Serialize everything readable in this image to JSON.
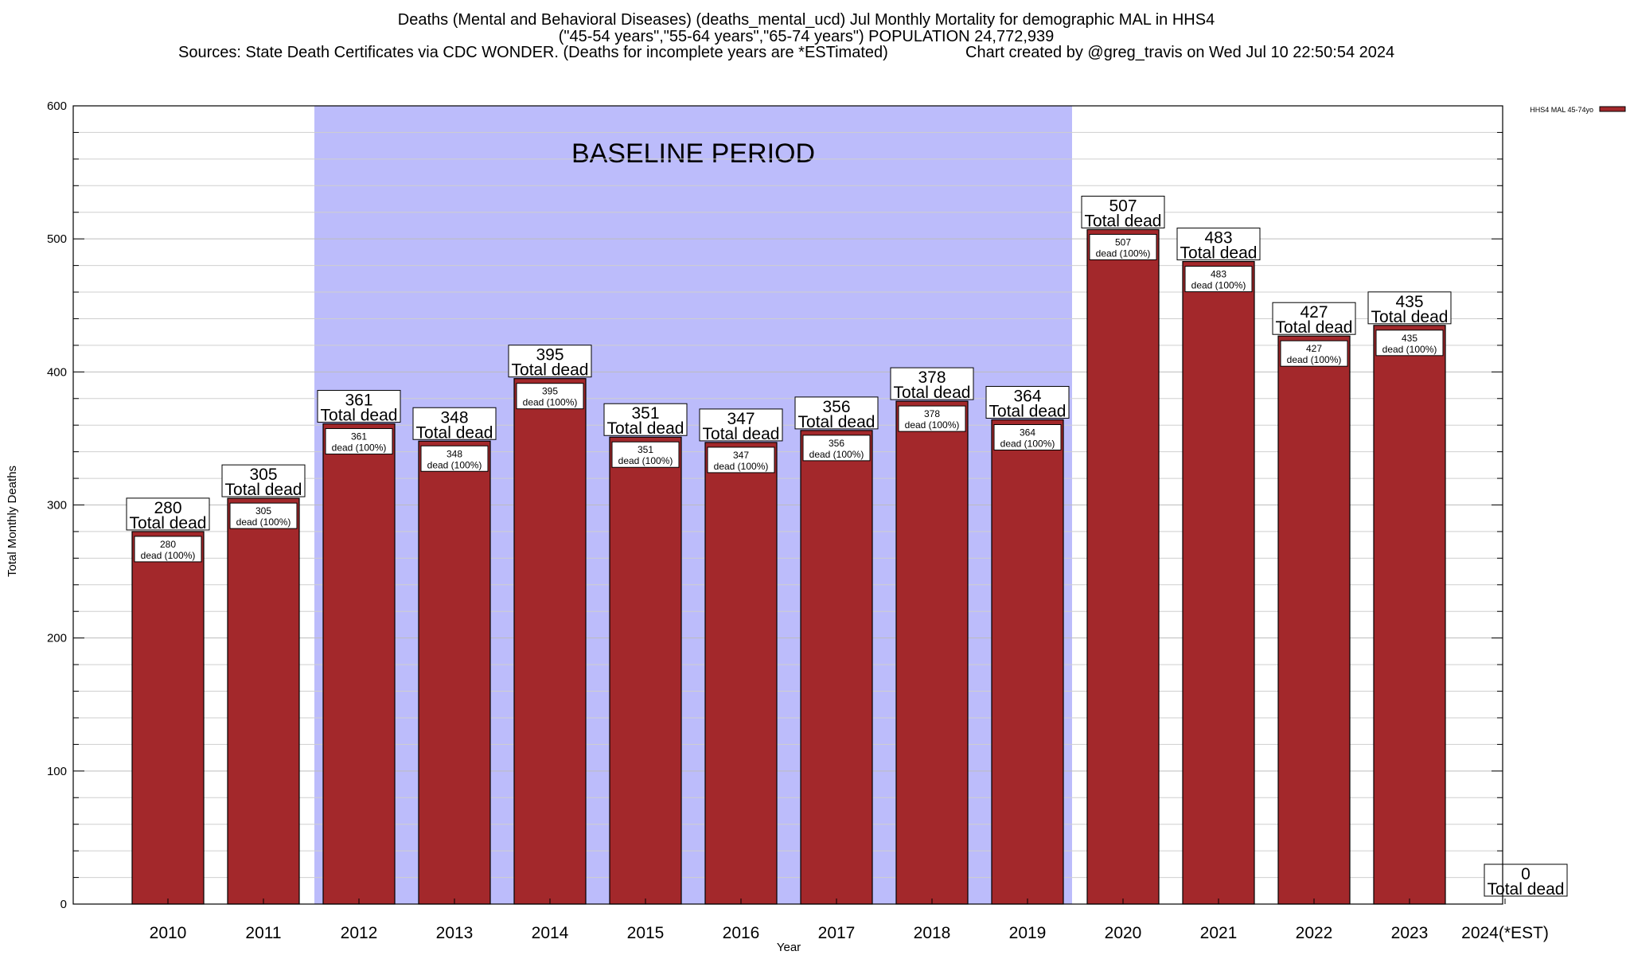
{
  "chart_data": {
    "type": "bar",
    "title_lines": [
      "Deaths (Mental and Behavioral Diseases) (deaths_mental_ucd) Jul Monthly Mortality for demographic MAL in HHS4",
      "(\"45-54 years\",\"55-64 years\",\"65-74 years\") POPULATION 24,772,939",
      "Sources: State Death Certificates via CDC WONDER. (Deaths for incomplete years are *ESTimated)",
      "Chart created by @greg_travis on Wed Jul 10 22:50:54 2024"
    ],
    "xlabel": "Year",
    "ylabel": "Total Monthly Deaths",
    "ylim": [
      0,
      600
    ],
    "yticks": [
      0,
      100,
      200,
      300,
      400,
      500,
      600
    ],
    "grid": true,
    "legend": {
      "position": "top-right",
      "entries": [
        "HHS4 MAL 45-74yo"
      ]
    },
    "shaded_region": {
      "label": "BASELINE PERIOD",
      "from": "2012",
      "to": "2019",
      "color": "#bcbcfb"
    },
    "bar_color": "#a3282b",
    "categories": [
      "2010",
      "2011",
      "2012",
      "2013",
      "2014",
      "2015",
      "2016",
      "2017",
      "2018",
      "2019",
      "2020",
      "2021",
      "2022",
      "2023",
      "2024(*EST)"
    ],
    "series": [
      {
        "name": "HHS4 MAL 45-74yo",
        "values": [
          280,
          305,
          361,
          348,
          395,
          351,
          347,
          356,
          378,
          364,
          507,
          483,
          427,
          435,
          0
        ]
      }
    ],
    "top_label_suffix": "Total dead",
    "inner_label_suffix": "dead (100%)"
  }
}
